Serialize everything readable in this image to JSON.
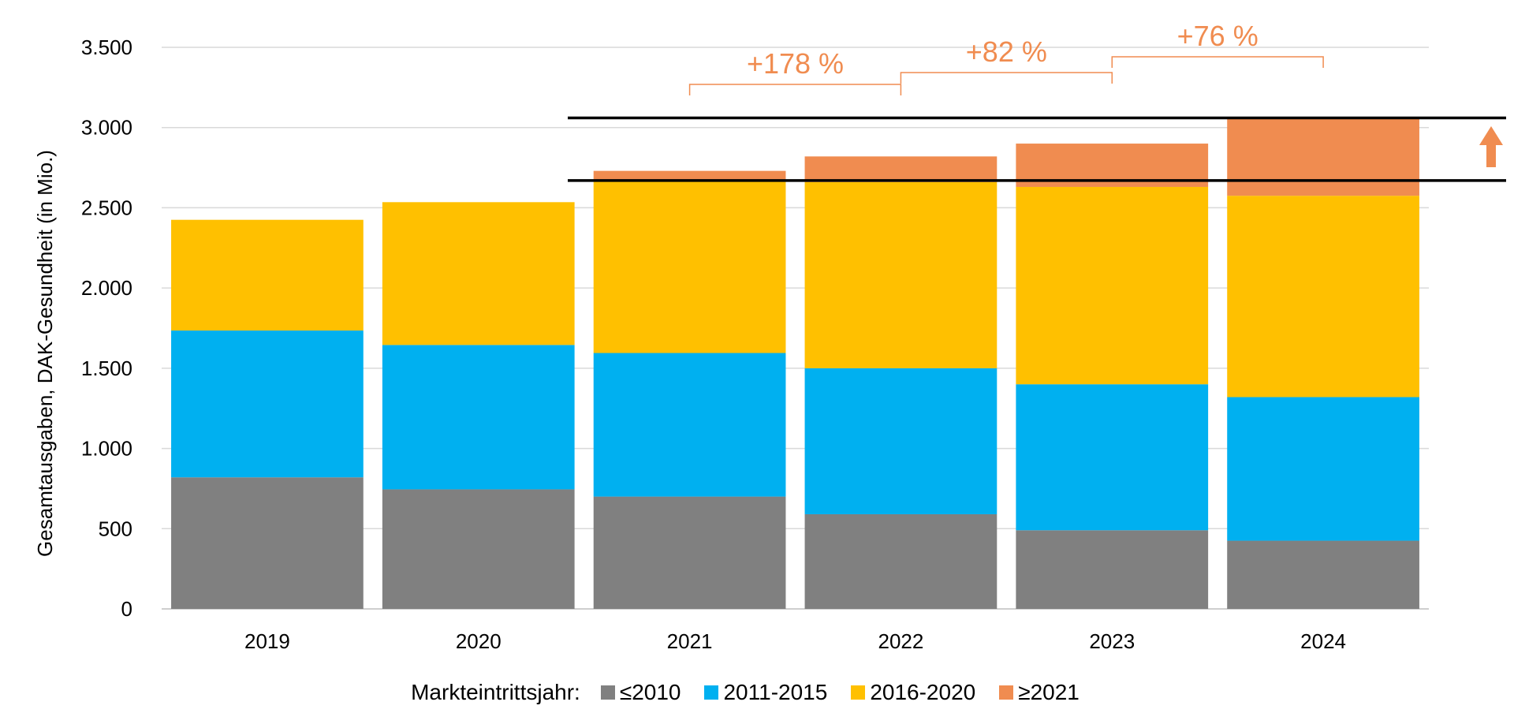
{
  "chart_data": {
    "type": "bar",
    "stacked": true,
    "categories": [
      "2019",
      "2020",
      "2021",
      "2022",
      "2023",
      "2024"
    ],
    "series": [
      {
        "name": "≤2010",
        "color": "#808080",
        "values": [
          820,
          745,
          700,
          590,
          490,
          425
        ]
      },
      {
        "name": "2011-2015",
        "color": "#00B0F0",
        "values": [
          915,
          900,
          895,
          910,
          910,
          895
        ]
      },
      {
        "name": "2016-2020",
        "color": "#FFC000",
        "values": [
          690,
          890,
          1075,
          1160,
          1230,
          1255
        ]
      },
      {
        "name": "≥2021",
        "color": "#F08C50",
        "values": [
          0,
          0,
          60,
          160,
          270,
          485
        ]
      }
    ],
    "ylabel": "Gesamtausgaben, DAK-Gesundheit (in Mio.)",
    "ylim": [
      0,
      3500
    ],
    "yticks": [
      0,
      500,
      1000,
      1500,
      2000,
      2500,
      3000,
      3500
    ],
    "ytick_labels": [
      "0",
      "500",
      "1.000",
      "1.500",
      "2.000",
      "2.500",
      "3.000",
      "3.500"
    ],
    "grid": true,
    "legend": {
      "title": "Markteintrittsjahr:",
      "position": "bottom"
    },
    "reference_lines": [
      3060,
      2670
    ],
    "annotations": [
      {
        "text": "+178 %",
        "from": "2021",
        "to": "2022"
      },
      {
        "text": "+82 %",
        "from": "2022",
        "to": "2023"
      },
      {
        "text": "+76 %",
        "from": "2023",
        "to": "2024"
      }
    ],
    "accent_color": "#F08C50"
  }
}
